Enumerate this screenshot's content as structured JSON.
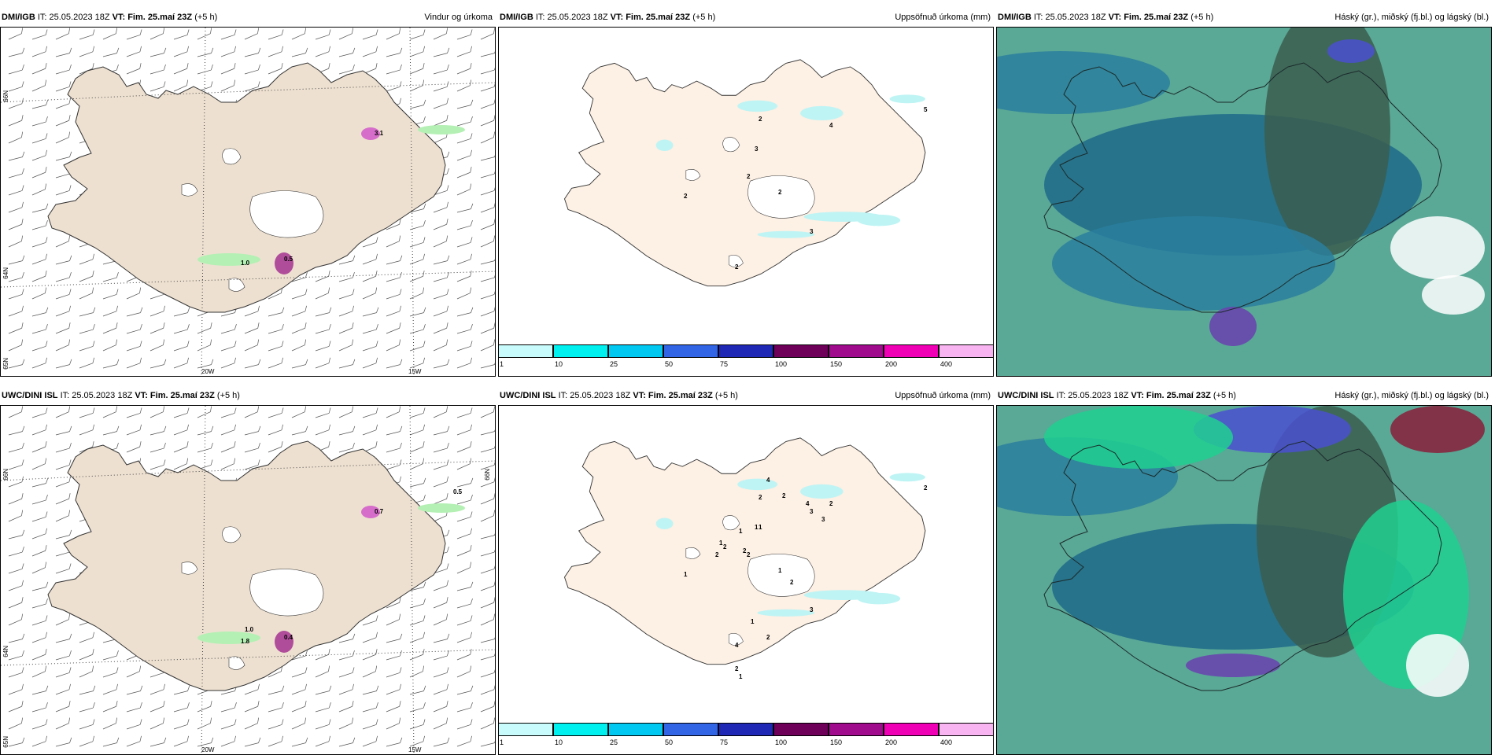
{
  "panels": [
    {
      "model": "DMI/IGB",
      "it": "IT: 25.05.2023 18Z",
      "vt_label": "VT:",
      "vt": "Fim. 25.maí 23Z",
      "offset": "(+5 h)",
      "title": "Vindur og úrkoma",
      "type": "wind",
      "lat_labels": [
        "66N",
        "64N",
        "65N"
      ],
      "lon_labels": [
        "20W",
        "15W"
      ],
      "point_labels": [
        "3.1",
        "0.5",
        "1.0"
      ]
    },
    {
      "model": "DMI/IGB",
      "it": "IT: 25.05.2023 18Z",
      "vt_label": "VT:",
      "vt": "Fim. 25.maí 23Z",
      "offset": "(+5 h)",
      "title": "Uppsöfnuð úrkoma (mm)",
      "type": "accum",
      "point_labels": [
        "2",
        "4",
        "5",
        "3",
        "2",
        "2",
        "2",
        "3",
        "2"
      ]
    },
    {
      "model": "DMI/IGB",
      "it": "IT: 25.05.2023 18Z",
      "vt_label": "VT:",
      "vt": "Fim. 25.maí 23Z",
      "offset": "(+5 h)",
      "title": "Háský (gr.), miðský (fj.bl.) og lágský (bl.)",
      "type": "cloud"
    },
    {
      "model": "UWC/DINI ISL",
      "it": "IT: 25.05.2023 18Z",
      "vt_label": "VT:",
      "vt": "Fim. 25.maí 23Z",
      "offset": "(+5 h)",
      "title": "",
      "type": "wind",
      "lat_labels": [
        "66N",
        "64N",
        "65N",
        "66N"
      ],
      "lon_labels": [
        "20W",
        "15W"
      ],
      "point_labels": [
        "0.7",
        "0.4",
        "1.8",
        "0.5",
        "1.0"
      ]
    },
    {
      "model": "UWC/DINI ISL",
      "it": "IT: 25.05.2023 18Z",
      "vt_label": "VT:",
      "vt": "Fim. 25.maí 23Z",
      "offset": "(+5 h)",
      "title": "Uppsöfnuð úrkoma (mm)",
      "type": "accum",
      "point_labels": [
        "2",
        "2",
        "2",
        "1",
        "2",
        "1",
        "1",
        "3",
        "4",
        "4",
        "2",
        "4",
        "3",
        "3",
        "1",
        "1",
        "2",
        "2",
        "1",
        "2",
        "2",
        "1",
        "2",
        "2",
        "1"
      ]
    },
    {
      "model": "UWC/DINI ISL",
      "it": "IT: 25.05.2023 18Z",
      "vt_label": "VT:",
      "vt": "Fim. 25.maí 23Z",
      "offset": "(+5 h)",
      "title": "Háský (gr.), miðský (fj.bl.) og lágský (bl.)",
      "type": "cloud"
    }
  ],
  "legend": {
    "labels": [
      "1",
      "10",
      "25",
      "50",
      "75",
      "100",
      "150",
      "200",
      "400"
    ],
    "colors": [
      "#c8fbfb",
      "#00f0f0",
      "#00c8f0",
      "#3264e6",
      "#1e28b4",
      "#6e005a",
      "#a00a8c",
      "#f000b4",
      "#f8b4f0"
    ]
  },
  "colors": {
    "land": "#ede0d0",
    "land_accum": "#fdf0e4",
    "cloud_base": "#5aa896",
    "precip_light": "#b4f0b4"
  }
}
